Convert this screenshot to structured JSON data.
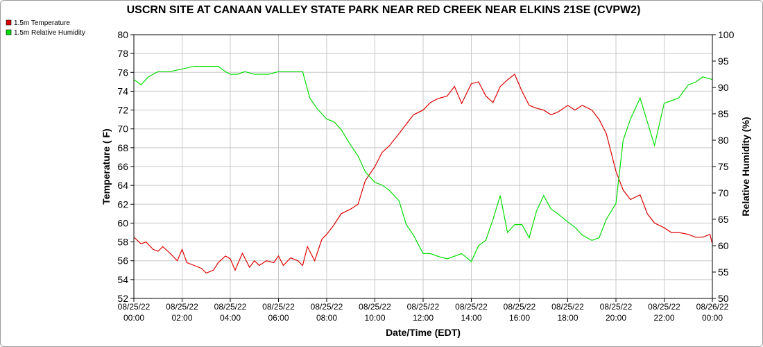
{
  "chart_data": {
    "type": "line",
    "title": "USCRN SITE AT CANAAN VALLEY STATE PARK NEAR RED CREEK NEAR ELKINS 21SE (CVPW2)",
    "xlabel": "Date/Time (EDT)",
    "ylabel_left": "Temperature ( F)",
    "ylabel_right": "Relative Humidity (%)",
    "ylim_left": [
      52,
      80
    ],
    "ylim_right": [
      50,
      100
    ],
    "yticks_left": [
      "52",
      "54",
      "56",
      "58",
      "60",
      "62",
      "64",
      "66",
      "68",
      "70",
      "72",
      "74",
      "76",
      "78",
      "80"
    ],
    "yticks_right": [
      "50",
      "55",
      "60",
      "65",
      "70",
      "75",
      "80",
      "85",
      "90",
      "95",
      "100"
    ],
    "xlim_hours": [
      0,
      24
    ],
    "xticks": [
      {
        "date": "08/25/22",
        "time": "00:00"
      },
      {
        "date": "08/25/22",
        "time": "02:00"
      },
      {
        "date": "08/25/22",
        "time": "04:00"
      },
      {
        "date": "08/25/22",
        "time": "06:00"
      },
      {
        "date": "08/25/22",
        "time": "08:00"
      },
      {
        "date": "08/25/22",
        "time": "10:00"
      },
      {
        "date": "08/25/22",
        "time": "12:00"
      },
      {
        "date": "08/25/22",
        "time": "14:00"
      },
      {
        "date": "08/25/22",
        "time": "16:00"
      },
      {
        "date": "08/25/22",
        "time": "18:00"
      },
      {
        "date": "08/25/22",
        "time": "20:00"
      },
      {
        "date": "08/25/22",
        "time": "22:00"
      },
      {
        "date": "08/26/22",
        "time": "00:00"
      }
    ],
    "grid": true,
    "legend_position": "top-left",
    "series": [
      {
        "name": "1.5m Temperature",
        "color": "#dd0000",
        "axis": "left",
        "x": [
          0,
          0.3,
          0.5,
          0.8,
          1.0,
          1.2,
          1.5,
          1.8,
          2.0,
          2.2,
          2.5,
          2.8,
          3.0,
          3.3,
          3.5,
          3.8,
          4.0,
          4.2,
          4.5,
          4.8,
          5.0,
          5.2,
          5.5,
          5.8,
          6.0,
          6.2,
          6.5,
          6.8,
          7.0,
          7.2,
          7.5,
          7.8,
          8.0,
          8.3,
          8.6,
          9.0,
          9.3,
          9.6,
          10.0,
          10.3,
          10.6,
          11.0,
          11.3,
          11.6,
          12.0,
          12.3,
          12.6,
          13.0,
          13.3,
          13.6,
          14.0,
          14.3,
          14.6,
          14.9,
          15.2,
          15.5,
          15.8,
          16.1,
          16.4,
          16.7,
          17.0,
          17.3,
          17.6,
          18.0,
          18.3,
          18.6,
          19.0,
          19.3,
          19.6,
          20.0,
          20.3,
          20.6,
          21.0,
          21.3,
          21.6,
          22.0,
          22.3,
          22.6,
          23.0,
          23.3,
          23.6,
          23.9,
          24.0
        ],
        "y": [
          58.5,
          57.8,
          58.0,
          57.2,
          57.0,
          57.5,
          56.8,
          56.0,
          57.2,
          55.8,
          55.5,
          55.2,
          54.7,
          55.0,
          55.8,
          56.5,
          56.2,
          55.0,
          56.8,
          55.3,
          56.0,
          55.5,
          56.0,
          55.8,
          56.5,
          55.5,
          56.3,
          56.0,
          55.5,
          57.5,
          56.0,
          58.3,
          58.8,
          59.8,
          61.0,
          61.5,
          62.0,
          64.5,
          66.0,
          67.5,
          68.2,
          69.5,
          70.5,
          71.5,
          72.0,
          72.8,
          73.2,
          73.5,
          74.5,
          72.7,
          74.8,
          75.0,
          73.5,
          72.8,
          74.5,
          75.2,
          75.8,
          74.0,
          72.5,
          72.2,
          72.0,
          71.5,
          71.8,
          72.5,
          72.0,
          72.5,
          72.0,
          71.0,
          69.5,
          65.5,
          63.5,
          62.5,
          63.0,
          61.0,
          60.0,
          59.5,
          59.0,
          59.0,
          58.8,
          58.5,
          58.5,
          58.8,
          57.8
        ]
      },
      {
        "name": "1.5m Relative Humidity",
        "color": "#00dd00",
        "axis": "right",
        "x": [
          0,
          0.3,
          0.6,
          1.0,
          1.5,
          2.0,
          2.5,
          3.0,
          3.5,
          3.8,
          4.0,
          4.3,
          4.6,
          5.0,
          5.3,
          5.6,
          6.0,
          6.3,
          6.6,
          7.0,
          7.3,
          7.6,
          8.0,
          8.3,
          8.6,
          9.0,
          9.3,
          9.6,
          10.0,
          10.3,
          10.6,
          11.0,
          11.3,
          11.6,
          12.0,
          12.3,
          12.6,
          13.0,
          13.3,
          13.6,
          14.0,
          14.3,
          14.6,
          14.9,
          15.2,
          15.5,
          15.8,
          16.1,
          16.4,
          16.7,
          17.0,
          17.3,
          17.6,
          18.0,
          18.3,
          18.6,
          19.0,
          19.3,
          19.6,
          20.0,
          20.3,
          20.6,
          21.0,
          21.3,
          21.6,
          22.0,
          22.3,
          22.6,
          23.0,
          23.3,
          23.6,
          24.0
        ],
        "y": [
          91.5,
          90.5,
          92.0,
          93.0,
          93.0,
          93.5,
          94.0,
          94.0,
          94.0,
          93.0,
          92.5,
          92.5,
          93.0,
          92.5,
          92.5,
          92.5,
          93.0,
          93.0,
          93.0,
          93.0,
          88.0,
          86.0,
          84.0,
          83.5,
          82.0,
          79.0,
          77.0,
          74.0,
          72.0,
          71.5,
          70.5,
          68.5,
          64.0,
          62.0,
          58.5,
          58.5,
          58.0,
          57.5,
          58.0,
          58.5,
          57.0,
          60.0,
          61.0,
          65.0,
          69.5,
          62.5,
          64.0,
          64.0,
          61.5,
          66.5,
          69.5,
          67.0,
          66.0,
          64.5,
          63.5,
          62.0,
          61.0,
          61.5,
          65.0,
          68.0,
          80.0,
          84.0,
          88.0,
          83.5,
          79.0,
          87.0,
          87.5,
          88.0,
          90.5,
          91.0,
          92.0,
          91.5
        ]
      }
    ]
  }
}
